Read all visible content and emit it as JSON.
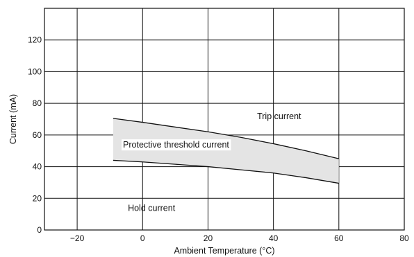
{
  "chart_data": {
    "type": "area",
    "xlabel": "Ambient Temperature (°C)",
    "ylabel": "Current (mA)",
    "xlim": [
      -30,
      80
    ],
    "ylim": [
      0,
      140
    ],
    "xticks": [
      -20,
      0,
      20,
      40,
      60,
      80
    ],
    "yticks": [
      0,
      20,
      40,
      60,
      80,
      100,
      120
    ],
    "xtick_labels": [
      "−20",
      "0",
      "20",
      "40",
      "60",
      "80"
    ],
    "ytick_labels": [
      "0",
      "20",
      "40",
      "60",
      "80",
      "100",
      "120"
    ],
    "grid": true,
    "series": [
      {
        "x": [
          -9,
          0,
          10,
          20,
          30,
          40,
          50,
          60
        ],
        "values": [
          70.5,
          68,
          65,
          62,
          58.5,
          54.5,
          50,
          45
        ]
      },
      {
        "x": [
          -9,
          0,
          10,
          20,
          30,
          40,
          50,
          60
        ],
        "values": [
          44,
          43,
          41.5,
          40,
          38,
          36,
          33,
          29.5
        ]
      }
    ],
    "band_fill": "#e4e4e4",
    "line_color": "#111111",
    "annotations": [
      {
        "text": "Trip current",
        "x": 35,
        "y": 70
      },
      {
        "text": "Protective threshold current",
        "x": -6,
        "y": 52
      },
      {
        "text": "Hold current",
        "x": -4.5,
        "y": 12
      }
    ]
  }
}
